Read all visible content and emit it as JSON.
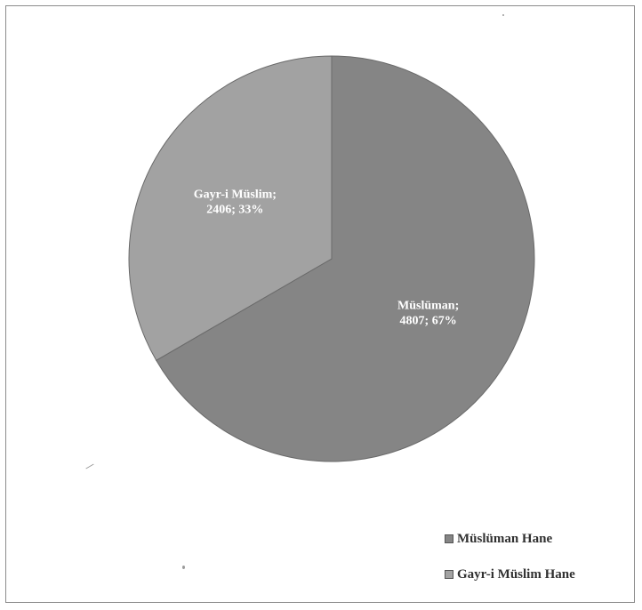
{
  "chart_data": {
    "type": "pie",
    "title": "",
    "slices": [
      {
        "name": "Müslüman",
        "legend": "Müslüman Hane",
        "value": 4807,
        "percent": 67,
        "label_line1": "Müslüman;",
        "label_line2": "4807; 67%",
        "color": "#858585"
      },
      {
        "name": "Gayr-i Müslim",
        "legend": "Gayr-i Müslim Hane",
        "value": 2406,
        "percent": 33,
        "label_line1": "Gayr-i Müslim;",
        "label_line2": "2406; 33%",
        "color": "#a2a2a2"
      }
    ],
    "legend_position": "bottom-right"
  }
}
